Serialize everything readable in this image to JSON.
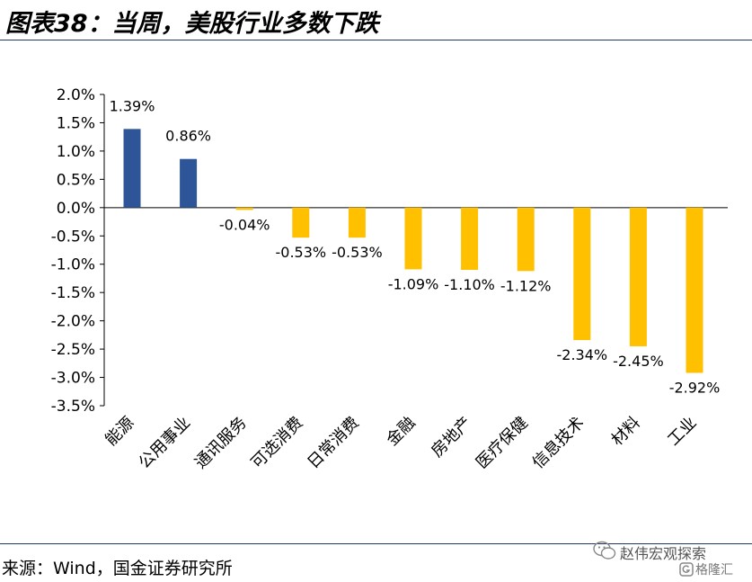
{
  "header": {
    "title": "图表38：当周，美股行业多数下跌"
  },
  "footer": {
    "source": "来源：Wind，国金证券研究所"
  },
  "watermark": {
    "line1": "赵伟宏观探索",
    "line2": "格隆汇"
  },
  "chart_data": {
    "type": "bar",
    "categories": [
      "能源",
      "公用事业",
      "通讯服务",
      "可选消费",
      "日常消费",
      "金融",
      "房地产",
      "医疗保健",
      "信息技术",
      "材料",
      "工业"
    ],
    "values": [
      1.39,
      0.86,
      -0.04,
      -0.53,
      -0.53,
      -1.09,
      -1.1,
      -1.12,
      -2.34,
      -2.45,
      -2.92
    ],
    "data_labels": [
      "1.39%",
      "0.86%",
      "-0.04%",
      "-0.53%",
      "-0.53%",
      "-1.09%",
      "-1.10%",
      "-1.12%",
      "-2.34%",
      "-2.45%",
      "-2.92%"
    ],
    "y_ticks": [
      2.0,
      1.5,
      1.0,
      0.5,
      0.0,
      -0.5,
      -1.0,
      -1.5,
      -2.0,
      -2.5,
      -3.0,
      -3.5
    ],
    "y_tick_labels": [
      "2.0%",
      "1.5%",
      "1.0%",
      "0.5%",
      "0.0%",
      "-0.5%",
      "-1.0%",
      "-1.5%",
      "-2.0%",
      "-2.5%",
      "-3.0%",
      "-3.5%"
    ],
    "ylim": [
      -3.5,
      2.0
    ],
    "grid": false,
    "legend": "none",
    "colors": {
      "positive": "#2e5597",
      "negative": "#ffc000",
      "axis": "#000000"
    }
  }
}
